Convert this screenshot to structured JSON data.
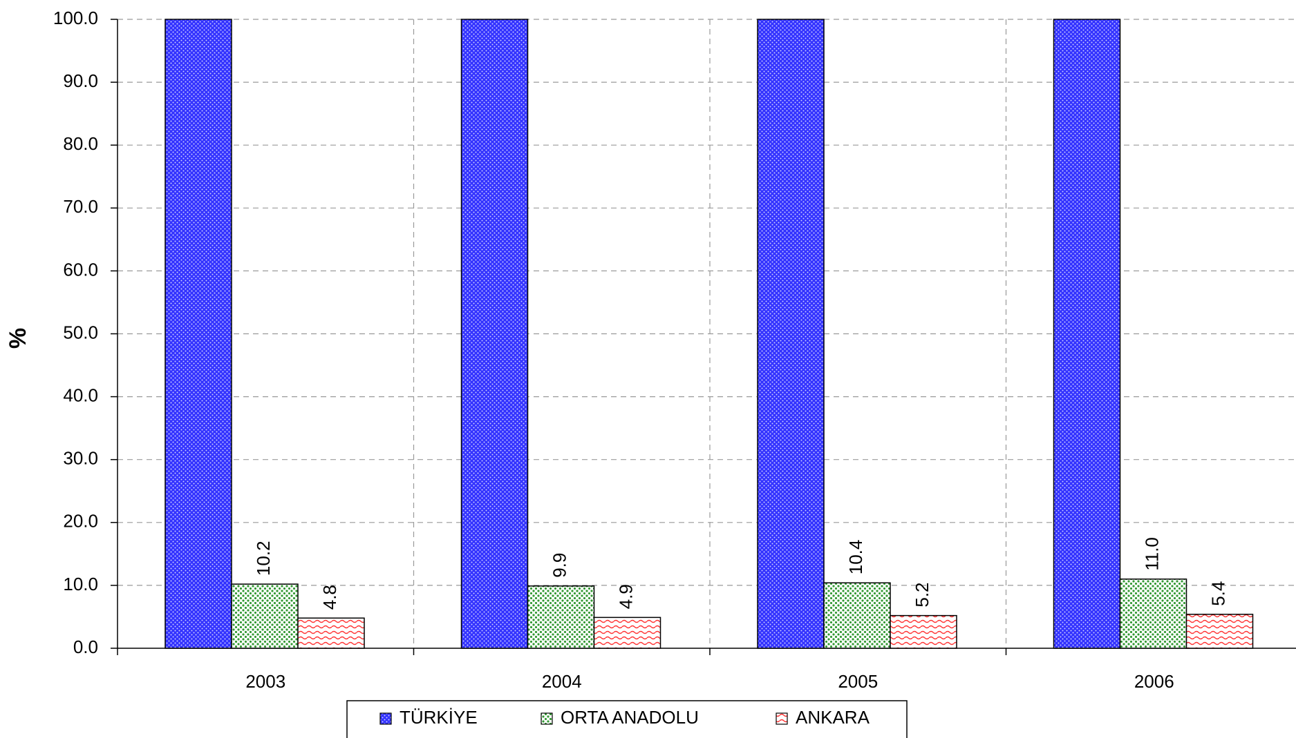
{
  "chart_data": {
    "type": "bar",
    "y_label": "%",
    "categories": [
      "2003",
      "2004",
      "2005",
      "2006"
    ],
    "series": [
      {
        "name": "TÜRKİYE",
        "color": "#3333ff",
        "values": [
          100,
          100,
          100,
          100
        ]
      },
      {
        "name": "ORTA ANADOLU",
        "color": "#339933",
        "values": [
          10.2,
          9.9,
          10.4,
          11.0
        ],
        "value_labels": [
          "10.2",
          "9.9",
          "10.4",
          "11.0"
        ]
      },
      {
        "name": "ANKARA",
        "color": "#ff3333",
        "values": [
          4.8,
          4.9,
          5.2,
          5.4
        ],
        "value_labels": [
          "4.8",
          "4.9",
          "5.2",
          "5.4"
        ]
      }
    ],
    "ylim": [
      0,
      100
    ],
    "yticks": [
      {
        "value": 0,
        "label": "0.0"
      },
      {
        "value": 10,
        "label": "10.0"
      },
      {
        "value": 20,
        "label": "20.0"
      },
      {
        "value": 30,
        "label": "30.0"
      },
      {
        "value": 40,
        "label": "40.0"
      },
      {
        "value": 50,
        "label": "50.0"
      },
      {
        "value": 60,
        "label": "60.0"
      },
      {
        "value": 70,
        "label": "70.0"
      },
      {
        "value": 80,
        "label": "80.0"
      },
      {
        "value": 90,
        "label": "90.0"
      },
      {
        "value": 100,
        "label": "100.0"
      }
    ],
    "grid": true,
    "legend": "bottom"
  }
}
